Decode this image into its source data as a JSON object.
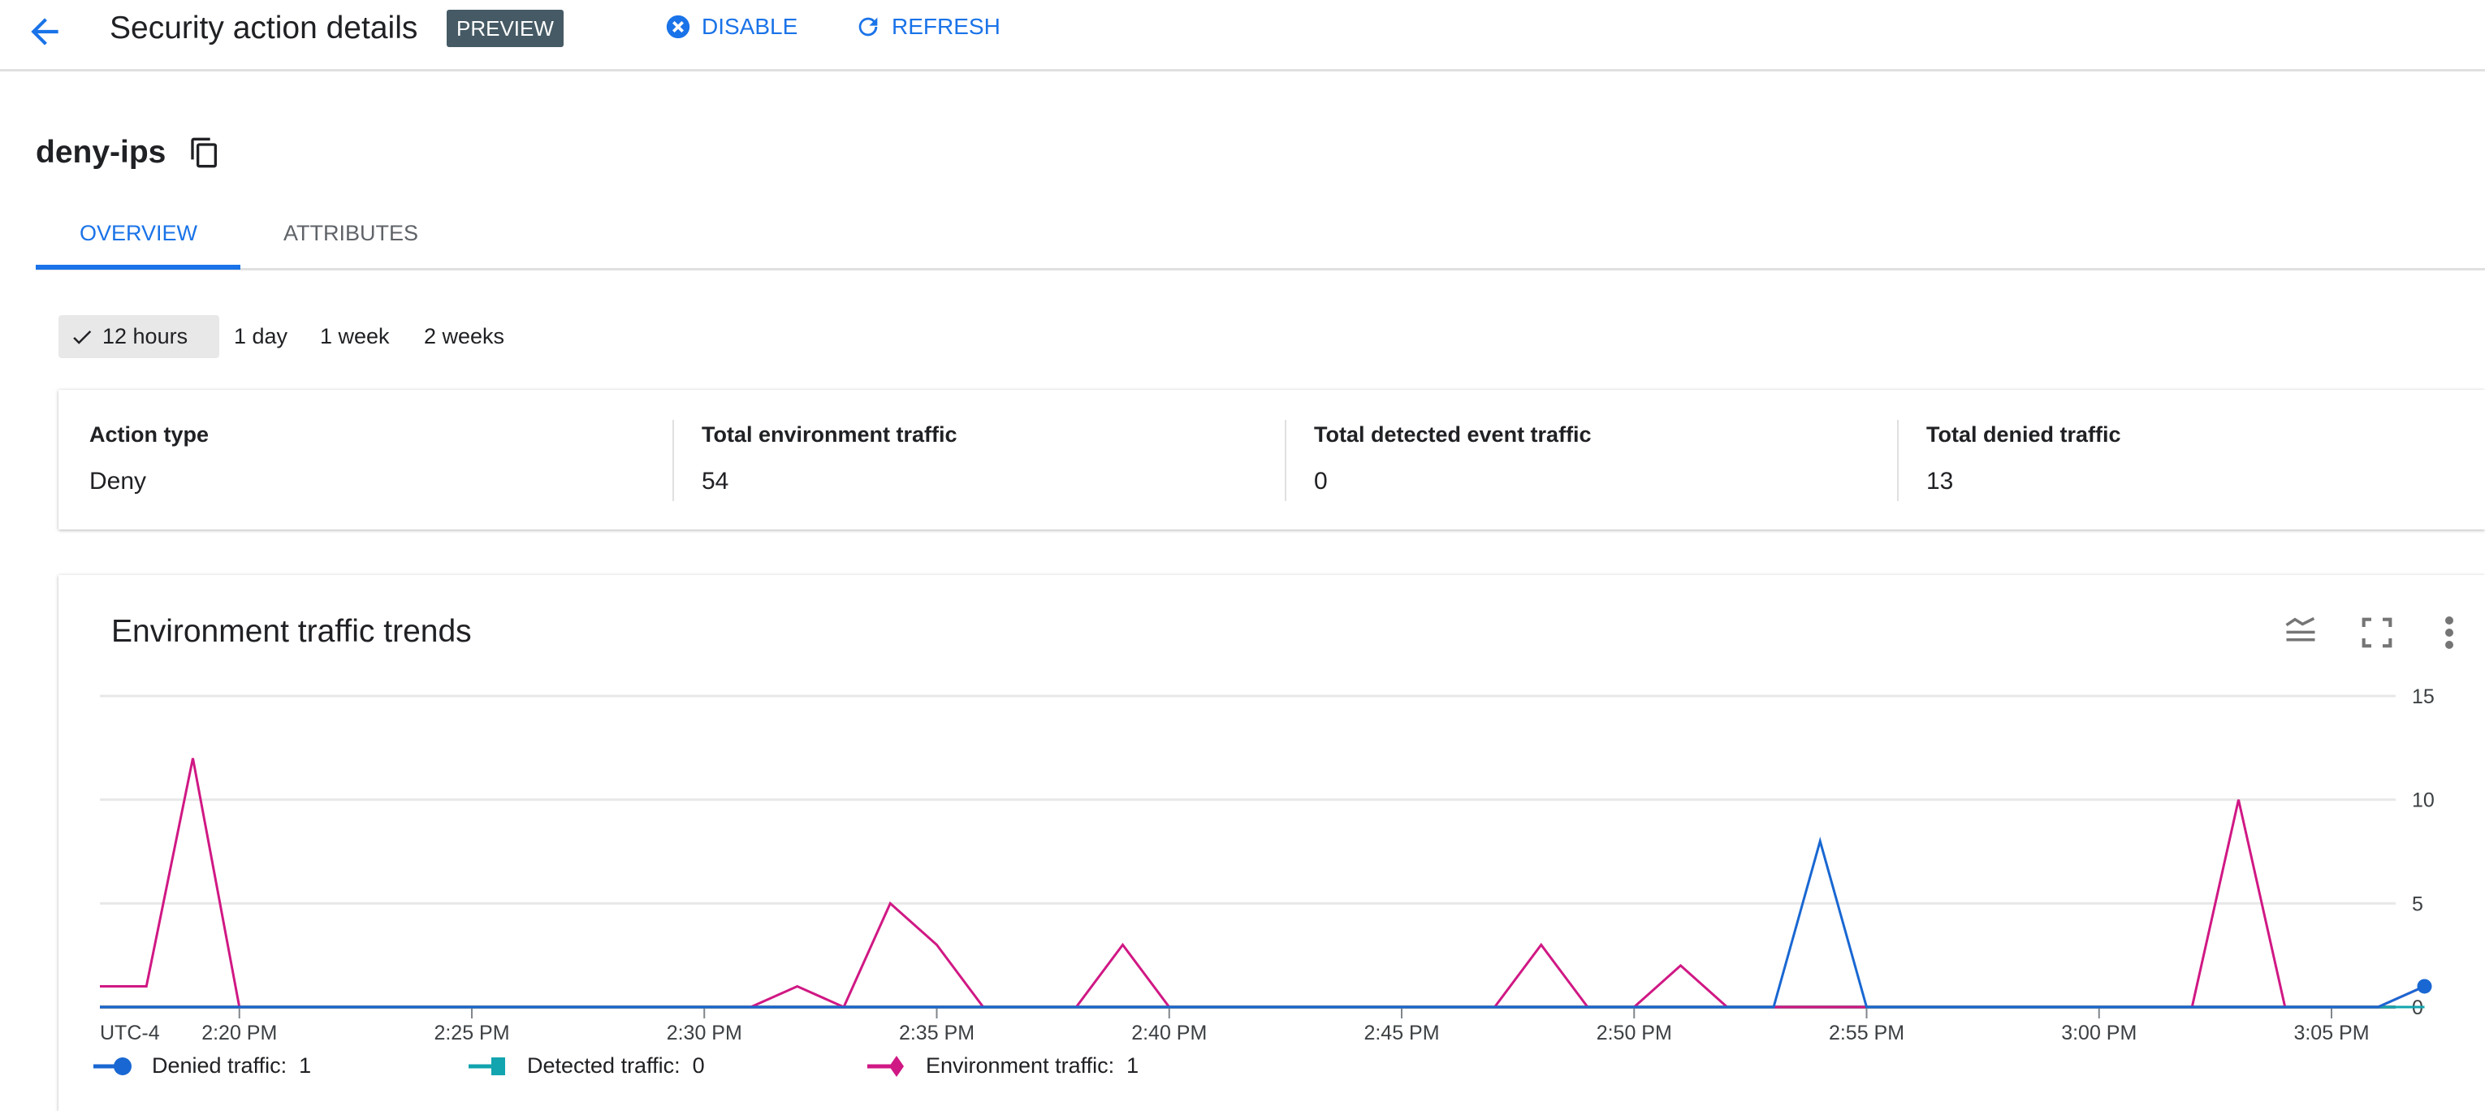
{
  "header": {
    "title": "Security action details",
    "badge": "PREVIEW",
    "disable_label": "DISABLE",
    "refresh_label": "REFRESH"
  },
  "resource": {
    "name": "deny-ips"
  },
  "tabs": [
    {
      "label": "OVERVIEW",
      "active": true
    },
    {
      "label": "ATTRIBUTES",
      "active": false
    }
  ],
  "time_ranges": [
    {
      "label": "12 hours",
      "selected": true
    },
    {
      "label": "1 day"
    },
    {
      "label": "1 week"
    },
    {
      "label": "2 weeks"
    }
  ],
  "stats": [
    {
      "label": "Action type",
      "value": "Deny"
    },
    {
      "label": "Total environment traffic",
      "value": "54"
    },
    {
      "label": "Total detected event traffic",
      "value": "0"
    },
    {
      "label": "Total denied traffic",
      "value": "13"
    }
  ],
  "chart_data": {
    "type": "line",
    "title": "Environment traffic trends",
    "timezone_label": "UTC-4",
    "x": [
      "2:17",
      "2:18",
      "2:19",
      "2:20",
      "2:21",
      "2:22",
      "2:23",
      "2:24",
      "2:25",
      "2:26",
      "2:27",
      "2:28",
      "2:29",
      "2:30",
      "2:31",
      "2:32",
      "2:33",
      "2:34",
      "2:35",
      "2:36",
      "2:37",
      "2:38",
      "2:39",
      "2:40",
      "2:41",
      "2:42",
      "2:43",
      "2:44",
      "2:45",
      "2:46",
      "2:47",
      "2:48",
      "2:49",
      "2:50",
      "2:51",
      "2:52",
      "2:53",
      "2:54",
      "2:55",
      "2:56",
      "2:57",
      "2:58",
      "2:59",
      "3:00",
      "3:01",
      "3:02",
      "3:03",
      "3:04",
      "3:05",
      "3:06",
      "3:07"
    ],
    "x_ticks": [
      "2:20 PM",
      "2:25 PM",
      "2:30 PM",
      "2:35 PM",
      "2:40 PM",
      "2:45 PM",
      "2:50 PM",
      "2:55 PM",
      "3:00 PM",
      "3:05 PM"
    ],
    "y_ticks": [
      "0",
      "5",
      "10",
      "15"
    ],
    "ylim": [
      0,
      15
    ],
    "grid": true,
    "legend_position": "bottom",
    "series": [
      {
        "name": "Detected traffic",
        "legend_value": "0",
        "color": "#12a4af",
        "marker": "square",
        "values": [
          0,
          0,
          0,
          0,
          0,
          0,
          0,
          0,
          0,
          0,
          0,
          0,
          0,
          0,
          0,
          0,
          0,
          0,
          0,
          0,
          0,
          0,
          0,
          0,
          0,
          0,
          0,
          0,
          0,
          0,
          0,
          0,
          0,
          0,
          0,
          0,
          0,
          0,
          0,
          0,
          0,
          0,
          0,
          0,
          0,
          0,
          0,
          0,
          0,
          0,
          0
        ]
      },
      {
        "name": "Environment traffic",
        "legend_value": "1",
        "color": "#d01884",
        "marker": "diamond",
        "values": [
          1,
          1,
          12,
          0,
          0,
          0,
          0,
          0,
          0,
          0,
          0,
          0,
          0,
          0,
          0,
          1,
          0,
          5,
          3,
          0,
          0,
          0,
          3,
          0,
          0,
          0,
          0,
          0,
          0,
          0,
          0,
          3,
          0,
          0,
          2,
          0,
          0,
          0,
          0,
          0,
          0,
          0,
          0,
          0,
          0,
          0,
          10,
          0,
          0,
          0,
          1
        ]
      },
      {
        "name": "Denied traffic",
        "legend_value": "1",
        "color": "#1967d2",
        "marker": "circle",
        "values": [
          0,
          0,
          0,
          0,
          0,
          0,
          0,
          0,
          0,
          0,
          0,
          0,
          0,
          0,
          0,
          0,
          0,
          0,
          0,
          0,
          0,
          0,
          0,
          0,
          0,
          0,
          0,
          0,
          0,
          0,
          0,
          0,
          0,
          0,
          0,
          0,
          0,
          8,
          0,
          0,
          0,
          0,
          0,
          0,
          0,
          0,
          0,
          0,
          0,
          0,
          1
        ]
      }
    ]
  }
}
